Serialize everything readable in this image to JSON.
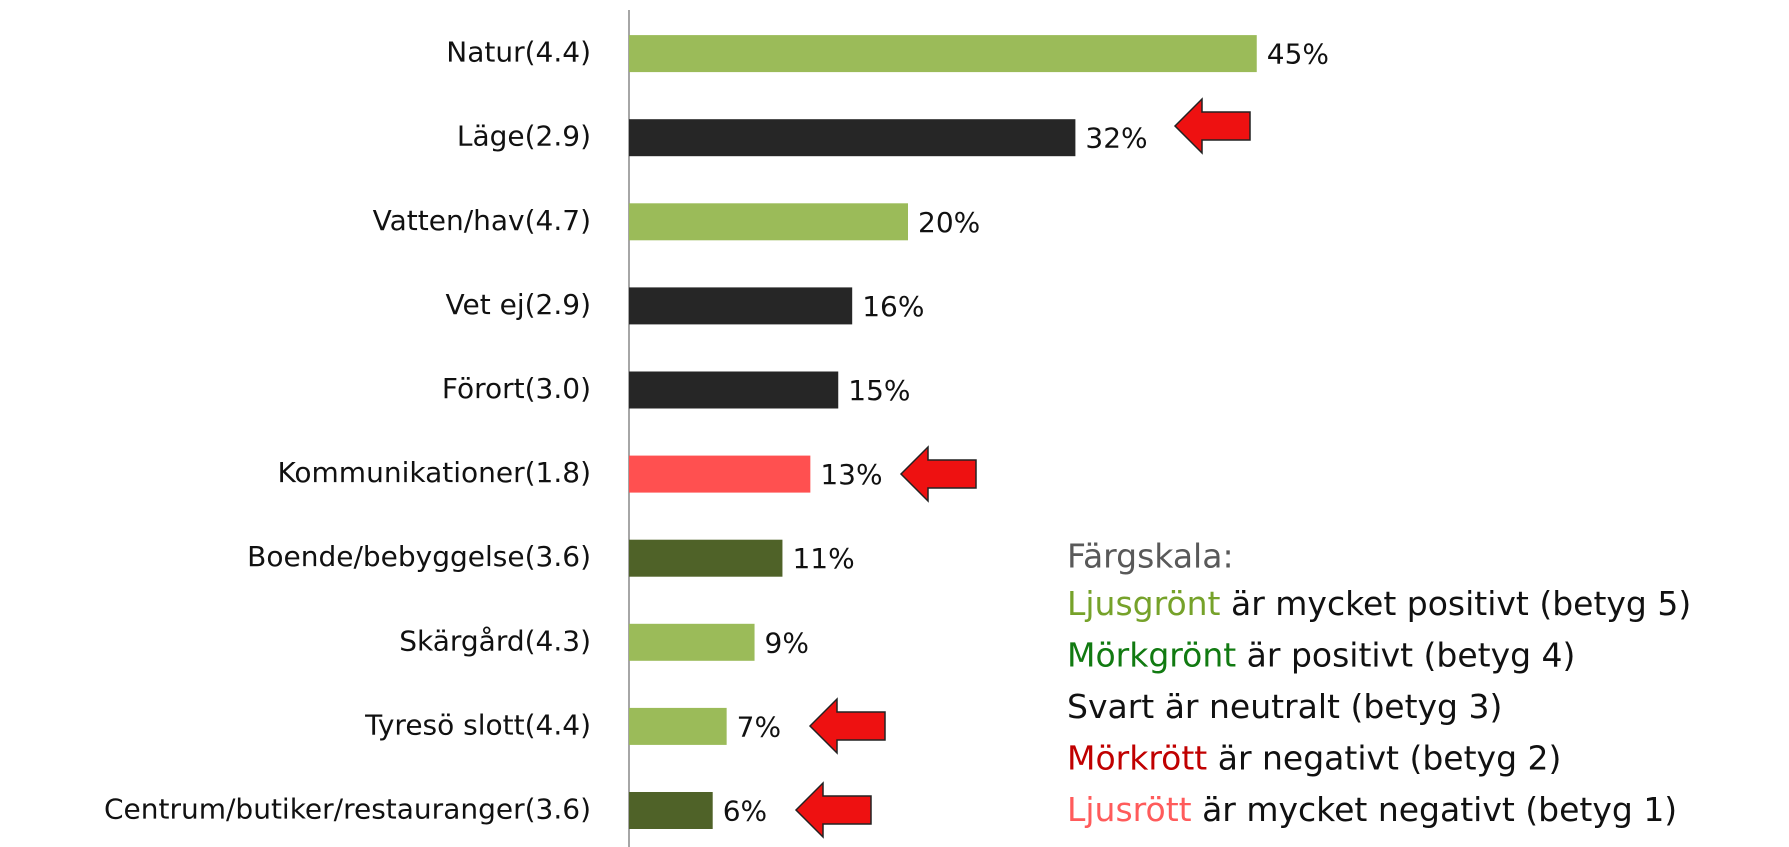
{
  "chart_data": {
    "type": "bar",
    "orientation": "horizontal",
    "categories": [
      "Natur(4.4)",
      "Läge(2.9)",
      "Vatten/hav(4.7)",
      "Vet ej(2.9)",
      "Förort(3.0)",
      "Kommunikationer(1.8)",
      "Boende/bebyggelse(3.6)",
      "Skärgård(4.3)",
      "Tyresö slott(4.4)",
      "Centrum/butiker/restauranger(3.6)"
    ],
    "values": [
      45,
      32,
      20,
      16,
      15,
      13,
      11,
      9,
      7,
      6
    ],
    "value_labels": [
      "45%",
      "32%",
      "20%",
      "16%",
      "15%",
      "13%",
      "11%",
      "9%",
      "7%",
      "6%"
    ],
    "colors": [
      "#9bbb59",
      "#262626",
      "#9bbb59",
      "#262626",
      "#262626",
      "#ff5050",
      "#4f6228",
      "#9bbb59",
      "#9bbb59",
      "#4f6228"
    ],
    "legend": {
      "heading": "Färgskala:",
      "items": [
        {
          "term": "Ljusgrönt",
          "color": "#76a22a",
          "text": " är mycket positivt (betyg 5)"
        },
        {
          "term": "Mörkgrönt",
          "color": "#117a11",
          "text": " är positivt (betyg 4)"
        },
        {
          "term": "Svart",
          "color": "#111111",
          "text": " är neutralt (betyg 3)"
        },
        {
          "term": "Mörkrött",
          "color": "#c00000",
          "text": " är negativt (betyg 2)"
        },
        {
          "term": "Ljusrött",
          "color": "#ff5b5b",
          "text": " är mycket negativt (betyg 1)"
        }
      ]
    }
  }
}
